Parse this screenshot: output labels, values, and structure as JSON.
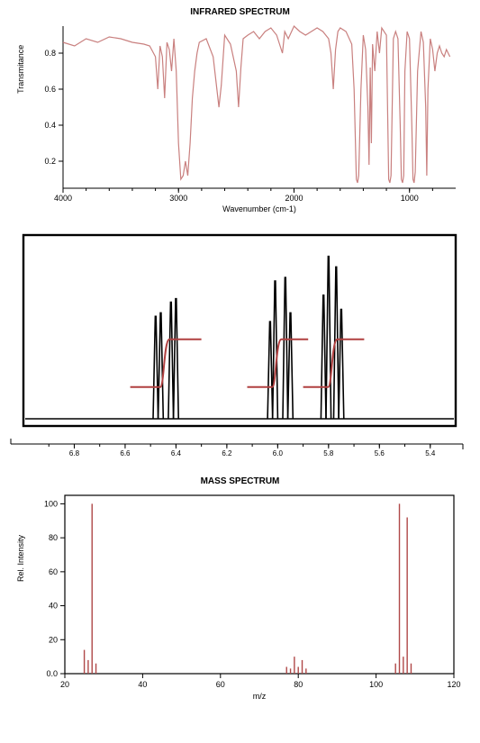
{
  "ir": {
    "title": "INFRARED SPECTRUM",
    "title_fontsize": 10,
    "xlabel": "Wavenumber (cm-1)",
    "ylabel": "Transmitance",
    "label_fontsize": 9,
    "xlim": [
      4000,
      600
    ],
    "ylim": [
      0.05,
      0.95
    ],
    "xticks": [
      4000,
      3000,
      2000,
      1000
    ],
    "yticks": [
      0.2,
      0.4,
      0.6,
      0.8
    ],
    "line_color": "#c9807f",
    "line_width": 1.2,
    "axis_color": "#000000",
    "background_color": "#ffffff",
    "type": "line",
    "data": [
      [
        4000,
        0.86
      ],
      [
        3900,
        0.84
      ],
      [
        3800,
        0.88
      ],
      [
        3700,
        0.86
      ],
      [
        3600,
        0.89
      ],
      [
        3500,
        0.88
      ],
      [
        3400,
        0.86
      ],
      [
        3300,
        0.85
      ],
      [
        3250,
        0.84
      ],
      [
        3200,
        0.78
      ],
      [
        3180,
        0.6
      ],
      [
        3160,
        0.84
      ],
      [
        3140,
        0.78
      ],
      [
        3120,
        0.55
      ],
      [
        3100,
        0.86
      ],
      [
        3080,
        0.82
      ],
      [
        3060,
        0.7
      ],
      [
        3040,
        0.88
      ],
      [
        3020,
        0.7
      ],
      [
        3000,
        0.3
      ],
      [
        2980,
        0.1
      ],
      [
        2960,
        0.12
      ],
      [
        2940,
        0.2
      ],
      [
        2920,
        0.12
      ],
      [
        2900,
        0.3
      ],
      [
        2880,
        0.55
      ],
      [
        2860,
        0.7
      ],
      [
        2840,
        0.8
      ],
      [
        2820,
        0.86
      ],
      [
        2760,
        0.88
      ],
      [
        2700,
        0.78
      ],
      [
        2650,
        0.5
      ],
      [
        2630,
        0.62
      ],
      [
        2600,
        0.9
      ],
      [
        2550,
        0.85
      ],
      [
        2500,
        0.7
      ],
      [
        2480,
        0.5
      ],
      [
        2460,
        0.72
      ],
      [
        2440,
        0.88
      ],
      [
        2400,
        0.9
      ],
      [
        2350,
        0.92
      ],
      [
        2300,
        0.88
      ],
      [
        2250,
        0.92
      ],
      [
        2200,
        0.94
      ],
      [
        2150,
        0.9
      ],
      [
        2100,
        0.8
      ],
      [
        2080,
        0.92
      ],
      [
        2050,
        0.88
      ],
      [
        2000,
        0.95
      ],
      [
        1950,
        0.92
      ],
      [
        1900,
        0.9
      ],
      [
        1850,
        0.92
      ],
      [
        1800,
        0.94
      ],
      [
        1750,
        0.92
      ],
      [
        1700,
        0.88
      ],
      [
        1680,
        0.8
      ],
      [
        1660,
        0.6
      ],
      [
        1640,
        0.82
      ],
      [
        1620,
        0.92
      ],
      [
        1600,
        0.94
      ],
      [
        1550,
        0.92
      ],
      [
        1500,
        0.85
      ],
      [
        1480,
        0.6
      ],
      [
        1460,
        0.1
      ],
      [
        1450,
        0.08
      ],
      [
        1440,
        0.12
      ],
      [
        1420,
        0.6
      ],
      [
        1400,
        0.9
      ],
      [
        1380,
        0.82
      ],
      [
        1360,
        0.5
      ],
      [
        1350,
        0.18
      ],
      [
        1340,
        0.72
      ],
      [
        1330,
        0.3
      ],
      [
        1320,
        0.85
      ],
      [
        1300,
        0.7
      ],
      [
        1280,
        0.92
      ],
      [
        1260,
        0.8
      ],
      [
        1240,
        0.94
      ],
      [
        1200,
        0.9
      ],
      [
        1180,
        0.1
      ],
      [
        1170,
        0.08
      ],
      [
        1160,
        0.12
      ],
      [
        1140,
        0.88
      ],
      [
        1120,
        0.92
      ],
      [
        1100,
        0.88
      ],
      [
        1080,
        0.4
      ],
      [
        1070,
        0.1
      ],
      [
        1060,
        0.08
      ],
      [
        1050,
        0.12
      ],
      [
        1040,
        0.7
      ],
      [
        1020,
        0.92
      ],
      [
        1000,
        0.88
      ],
      [
        980,
        0.4
      ],
      [
        970,
        0.1
      ],
      [
        960,
        0.08
      ],
      [
        950,
        0.14
      ],
      [
        930,
        0.7
      ],
      [
        900,
        0.92
      ],
      [
        880,
        0.86
      ],
      [
        860,
        0.5
      ],
      [
        850,
        0.12
      ],
      [
        840,
        0.6
      ],
      [
        820,
        0.88
      ],
      [
        800,
        0.82
      ],
      [
        780,
        0.7
      ],
      [
        760,
        0.8
      ],
      [
        740,
        0.84
      ],
      [
        720,
        0.8
      ],
      [
        700,
        0.78
      ],
      [
        680,
        0.82
      ],
      [
        650,
        0.78
      ]
    ]
  },
  "nmr": {
    "type": "nmr-1d",
    "xlim": [
      7.0,
      5.3
    ],
    "xticks": [
      6.8,
      6.6,
      6.4,
      6.2,
      6.0,
      5.8,
      5.6,
      5.4
    ],
    "line_color": "#000000",
    "integral_color": "#b04040",
    "border_color": "#000000",
    "background_color": "#ffffff",
    "baseline_y": 0.05,
    "max_height": 0.92,
    "peak_width": 0.01,
    "groups": [
      {
        "peaks": [
          6.48,
          6.46,
          6.42,
          6.4
        ],
        "heights": [
          0.58,
          0.6,
          0.66,
          0.68
        ],
        "integral_start": 6.58,
        "integral_end": 6.3
      },
      {
        "peaks": [
          6.03,
          6.01,
          5.97,
          5.95
        ],
        "heights": [
          0.55,
          0.78,
          0.8,
          0.6
        ],
        "integral_start": 6.12,
        "integral_end": 5.88
      },
      {
        "peaks": [
          5.82,
          5.8,
          5.77,
          5.75
        ],
        "heights": [
          0.7,
          0.92,
          0.86,
          0.62
        ],
        "integral_start": 5.9,
        "integral_end": 5.66
      }
    ]
  },
  "ms": {
    "title": "MASS SPECTRUM",
    "title_fontsize": 10,
    "xlabel": "m/z",
    "ylabel": "Rel. Intensity",
    "label_fontsize": 9,
    "xlim": [
      20,
      120
    ],
    "ylim": [
      0,
      105
    ],
    "xticks": [
      20,
      40,
      60,
      80,
      100,
      120
    ],
    "yticks": [
      0.0,
      20,
      40,
      60,
      80,
      100
    ],
    "bar_color": "#b04848",
    "axis_color": "#000000",
    "background_color": "#ffffff",
    "type": "ms-sticks",
    "peaks": [
      [
        25,
        14
      ],
      [
        26,
        8
      ],
      [
        27,
        100
      ],
      [
        28,
        6
      ],
      [
        77,
        4
      ],
      [
        78,
        3
      ],
      [
        79,
        10
      ],
      [
        80,
        4
      ],
      [
        81,
        8
      ],
      [
        82,
        3
      ],
      [
        105,
        6
      ],
      [
        106,
        100
      ],
      [
        107,
        10
      ],
      [
        108,
        92
      ],
      [
        109,
        6
      ]
    ]
  }
}
